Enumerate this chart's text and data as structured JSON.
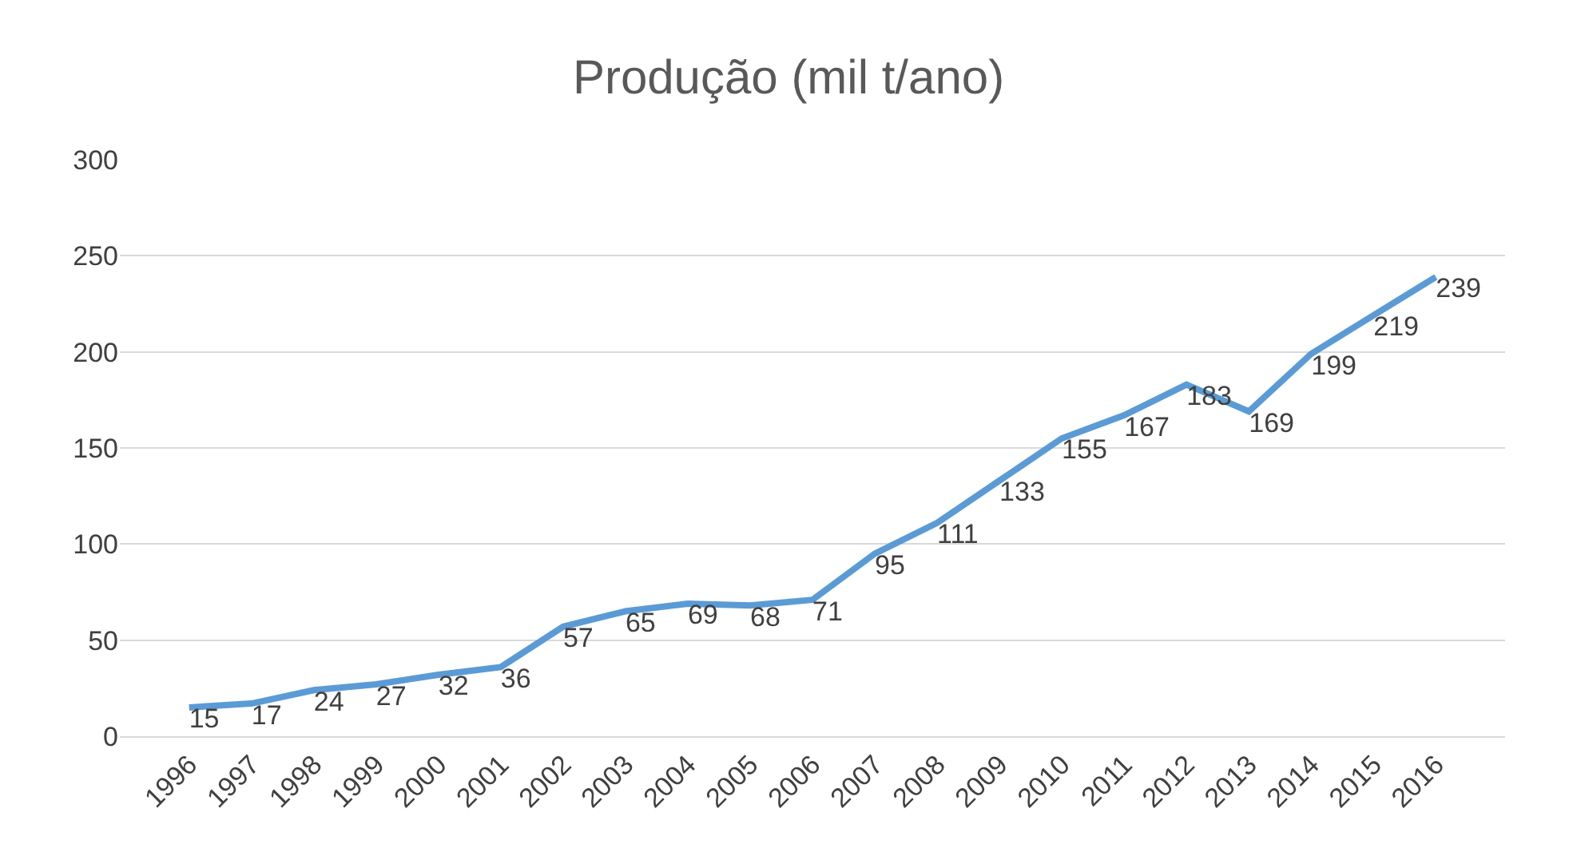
{
  "chart_data": {
    "type": "line",
    "title": "Produção (mil t/ano)",
    "categories": [
      "1996",
      "1997",
      "1998",
      "1999",
      "2000",
      "2001",
      "2002",
      "2003",
      "2004",
      "2005",
      "2006",
      "2007",
      "2008",
      "2009",
      "2010",
      "2011",
      "2012",
      "2013",
      "2014",
      "2015",
      "2016"
    ],
    "series": [
      {
        "color": "#5b9bd5",
        "values": [
          15,
          17,
          24,
          27,
          32,
          36,
          57,
          65,
          69,
          68,
          71,
          95,
          111,
          133,
          155,
          167,
          183,
          169,
          199,
          219,
          239
        ]
      }
    ],
    "ylim": [
      0,
      300
    ],
    "yticks": [
      0,
      50,
      100,
      150,
      200,
      250,
      300
    ],
    "grid": "y",
    "data_labels": true,
    "marker": "none",
    "line_style": "solid"
  }
}
